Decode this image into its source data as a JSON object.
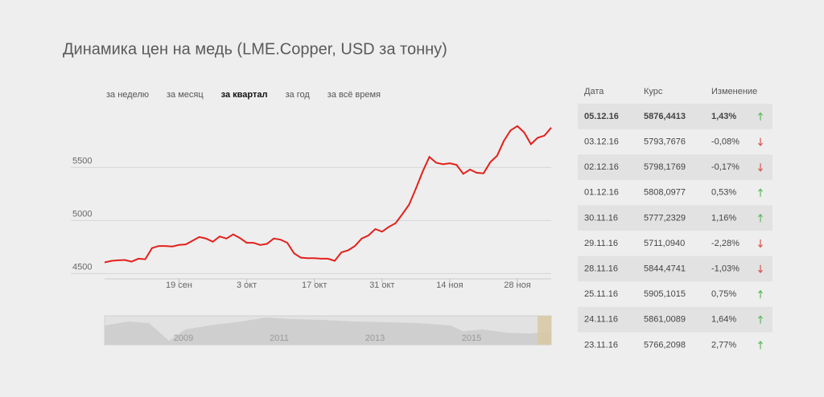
{
  "chart_data": {
    "type": "line",
    "title": "Динамика цен на медь (LME.Copper, USD за тонну)",
    "range_selector": {
      "options": [
        "за неделю",
        "за месяц",
        "за квартал",
        "за год",
        "за всё время"
      ],
      "selected": 2
    },
    "categories": [
      null,
      null,
      null,
      null,
      null,
      null,
      null,
      null,
      null,
      null,
      null,
      "19 сен",
      null,
      null,
      null,
      null,
      null,
      null,
      null,
      null,
      null,
      "3 окт",
      null,
      null,
      null,
      null,
      null,
      null,
      null,
      null,
      null,
      "17 окт",
      null,
      null,
      null,
      null,
      null,
      null,
      null,
      null,
      null,
      "31 окт",
      null,
      null,
      null,
      null,
      null,
      null,
      null,
      null,
      null,
      "14 ноя",
      null,
      null,
      null,
      null,
      null,
      null,
      null,
      null,
      null,
      "28 ноя",
      null,
      null,
      null,
      null,
      null
    ],
    "series": [
      {
        "name": "LME.Copper",
        "color": "#e3201b",
        "values": [
          4605,
          4620,
          4625,
          4628,
          4612,
          4640,
          4635,
          4740,
          4760,
          4760,
          4755,
          4770,
          4775,
          4810,
          4845,
          4830,
          4800,
          4850,
          4830,
          4870,
          4835,
          4790,
          4790,
          4770,
          4780,
          4830,
          4820,
          4790,
          4690,
          4650,
          4645,
          4645,
          4640,
          4640,
          4620,
          4700,
          4720,
          4760,
          4830,
          4860,
          4920,
          4895,
          4940,
          4975,
          5060,
          5150,
          5300,
          5460,
          5600,
          5545,
          5530,
          5540,
          5525,
          5440,
          5480,
          5450,
          5445,
          5550,
          5610,
          5750,
          5850,
          5890,
          5830,
          5720,
          5780,
          5800,
          5876
        ]
      }
    ],
    "ylim": [
      4450,
      5950
    ],
    "yticks": [
      4500,
      5000,
      5500
    ],
    "grid": true,
    "navigator_labels": [
      "2009",
      "2011",
      "2013",
      "2015"
    ]
  },
  "table": {
    "header": [
      "Дата",
      "Курс",
      "Изменение"
    ],
    "rows": [
      [
        "05.12.16",
        "5876,4413",
        "1,43%"
      ],
      [
        "03.12.16",
        "5793,7676",
        "-0,08%"
      ],
      [
        "02.12.16",
        "5798,1769",
        "-0,17%"
      ],
      [
        "01.12.16",
        "5808,0977",
        "0,53%"
      ],
      [
        "30.11.16",
        "5777,2329",
        "1,16%"
      ],
      [
        "29.11.16",
        "5711,0940",
        "-2,28%"
      ],
      [
        "28.11.16",
        "5844,4741",
        "-1,03%"
      ],
      [
        "25.11.16",
        "5905,1015",
        "0,75%"
      ],
      [
        "24.11.16",
        "5861,0089",
        "1,64%"
      ],
      [
        "23.11.16",
        "5766,2098",
        "2,77%"
      ]
    ]
  }
}
